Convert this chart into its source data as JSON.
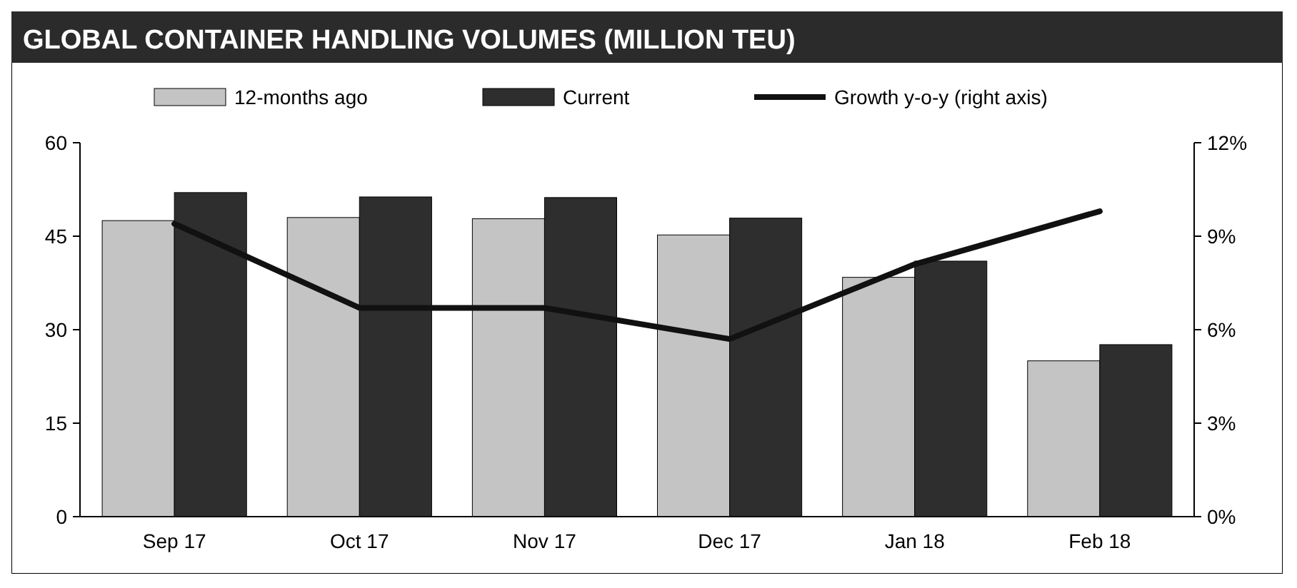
{
  "chart_data": {
    "type": "bar",
    "title": "GLOBAL CONTAINER HANDLING VOLUMES (MILLION TEU)",
    "categories": [
      "Sep 17",
      "Oct 17",
      "Nov 17",
      "Dec 17",
      "Jan 18",
      "Feb 18"
    ],
    "series": [
      {
        "name": "12-months ago",
        "color": "#c4c4c4",
        "values": [
          47.5,
          48,
          47.8,
          45.2,
          38.4,
          25
        ]
      },
      {
        "name": "Current",
        "color": "#2e2e2e",
        "values": [
          52,
          51.3,
          51.2,
          47.9,
          41,
          27.6
        ]
      },
      {
        "name": "Growth y-o-y (right axis)",
        "color": "#111111",
        "type": "line",
        "axis": "y2",
        "values": [
          9.4,
          6.7,
          6.7,
          5.7,
          8.1,
          9.8
        ]
      }
    ],
    "ylim": [
      0,
      60
    ],
    "yticks": [
      0,
      15,
      30,
      45,
      60
    ],
    "y2lim": [
      0,
      12
    ],
    "y2ticks": [
      {
        "value": 0,
        "label": "0%"
      },
      {
        "value": 3,
        "label": "3%"
      },
      {
        "value": 6,
        "label": "6%"
      },
      {
        "value": 9,
        "label": "9%"
      },
      {
        "value": 12,
        "label": "12%"
      }
    ],
    "legend": "top",
    "marker": "none",
    "line_style": "solid"
  }
}
